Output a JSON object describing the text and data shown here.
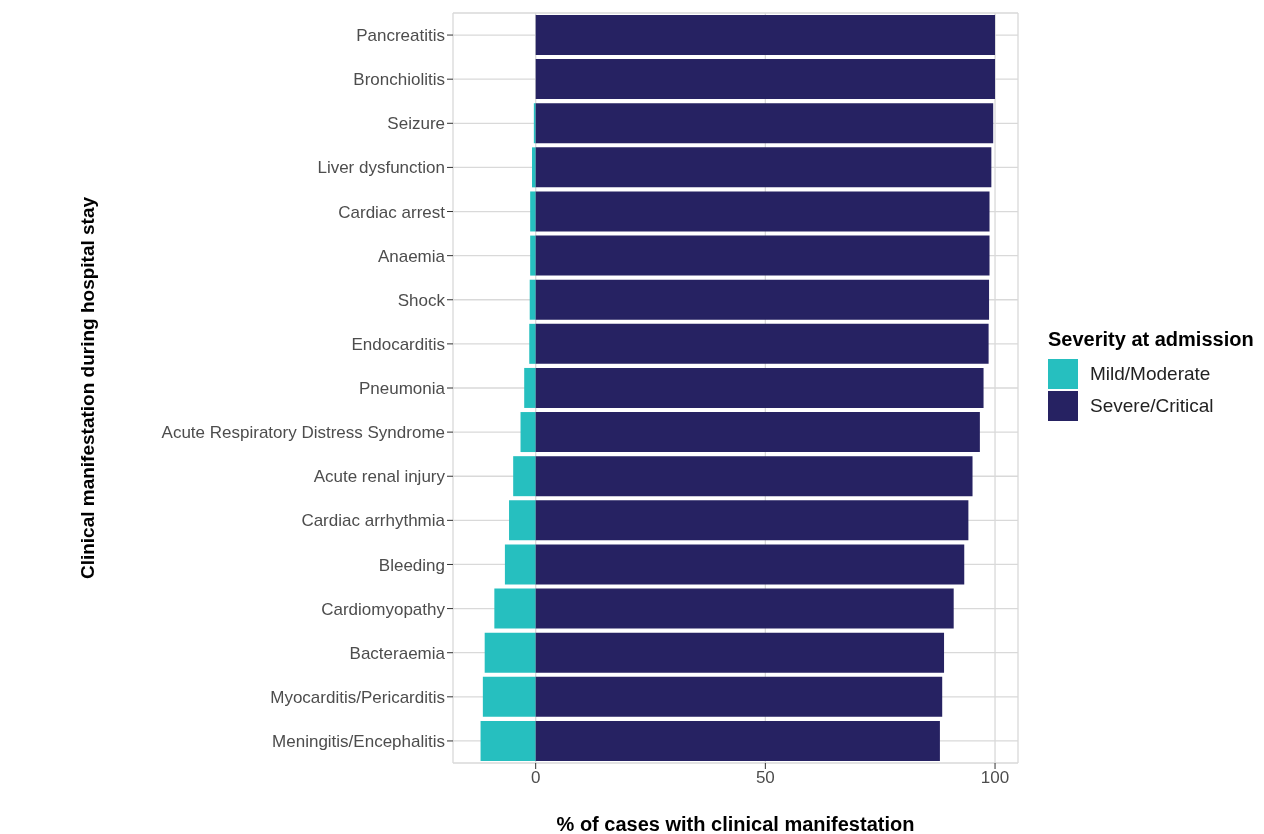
{
  "chart_data": {
    "type": "bar",
    "orientation": "horizontal",
    "stacked": true,
    "xlabel": "% of cases with clinical manifestation",
    "ylabel": "Clinical manifestation during hospital stay",
    "legend_title": "Severity at admission",
    "legend": "right",
    "grid": true,
    "categories": [
      "Pancreatitis",
      "Bronchiolitis",
      "Seizure",
      "Liver dysfunction",
      "Cardiac arrest",
      "Anaemia",
      "Shock",
      "Endocarditis",
      "Pneumonia",
      "Acute Respiratory Distress Syndrome",
      "Acute renal injury",
      "Cardiac arrhythmia",
      "Bleeding",
      "Cardiomyopathy",
      "Bacteraemia",
      "Myocarditis/Pericarditis",
      "Meningitis/Encephalitis"
    ],
    "series": [
      {
        "name": "Mild/Moderate",
        "color": "#26bfbf",
        "values": [
          0,
          0,
          -0.4,
          -0.8,
          -1.2,
          -1.2,
          -1.3,
          -1.4,
          -2.5,
          -3.3,
          -4.9,
          -5.8,
          -6.7,
          -9,
          -11.1,
          -11.5,
          -12
        ]
      },
      {
        "name": "Severe/Critical",
        "color": "#262262",
        "values": [
          100,
          100,
          99.6,
          99.2,
          98.8,
          98.8,
          98.7,
          98.6,
          97.5,
          96.7,
          95.1,
          94.2,
          93.3,
          91,
          88.9,
          88.5,
          88
        ]
      }
    ],
    "xlim": [
      -18,
      105
    ],
    "xticks": [
      0,
      50,
      100
    ]
  }
}
